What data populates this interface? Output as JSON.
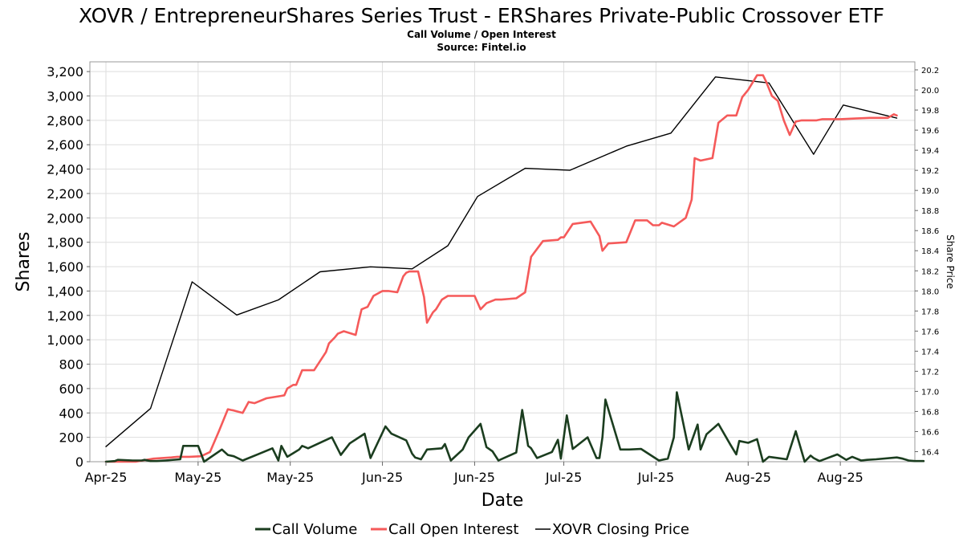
{
  "chart_data": {
    "type": "line",
    "title": "XOVR / EntrepreneurShares Series Trust - ERShares Private-Public Crossover ETF",
    "subtitle": "Call Volume / Open Interest",
    "source": "Source: Fintel.io",
    "xlabel": "Date",
    "ylabel": "Shares",
    "y2label": "Share Price",
    "ylim": [
      0,
      3280
    ],
    "y2lim": [
      16.3,
      20.28
    ],
    "grid": true,
    "legend_position": "bottom",
    "x_ticks": [
      {
        "label": "Apr-25",
        "x": 0
      },
      {
        "label": "May-25",
        "x": 31
      },
      {
        "label": "May-25",
        "x": 62
      },
      {
        "label": "Jun-25",
        "x": 93
      },
      {
        "label": "Jun-25",
        "x": 124
      },
      {
        "label": "Jul-25",
        "x": 154
      },
      {
        "label": "Jul-25",
        "x": 185
      },
      {
        "label": "Aug-25",
        "x": 216
      },
      {
        "label": "Aug-25",
        "x": 247
      }
    ],
    "y_ticks": [
      "0",
      "200",
      "400",
      "600",
      "800",
      "1,000",
      "1,200",
      "1,400",
      "1,600",
      "1,800",
      "2,000",
      "2,200",
      "2,400",
      "2,600",
      "2,800",
      "3,000",
      "3,200"
    ],
    "y2_ticks": [
      "16.4",
      "16.6",
      "16.8",
      "17.0",
      "17.2",
      "17.4",
      "17.6",
      "17.8",
      "18.0",
      "18.2",
      "18.4",
      "18.6",
      "18.8",
      "19.0",
      "19.2",
      "19.4",
      "19.6",
      "19.8",
      "20.0",
      "20.2"
    ],
    "series": [
      {
        "name": "Call Volume",
        "axis": "left",
        "color": "#1b3d1f",
        "x": [
          0,
          3,
          4,
          7,
          9,
          12,
          13,
          15,
          17,
          20,
          25,
          26,
          28,
          31,
          33,
          39,
          41,
          43,
          46,
          51,
          56,
          58,
          59,
          61,
          63,
          65,
          66,
          68,
          76,
          79,
          82,
          87,
          89,
          94,
          96,
          101,
          103,
          104,
          106,
          108,
          113,
          114,
          116,
          120,
          122,
          126,
          128,
          130,
          132,
          138,
          140,
          142,
          143,
          145,
          150,
          152,
          153,
          155,
          157,
          162,
          165,
          166,
          167,
          168,
          173,
          174,
          176,
          180,
          186,
          189,
          191,
          192,
          196,
          199,
          200,
          202,
          206,
          210,
          212,
          213,
          216,
          219,
          221,
          223,
          226,
          229,
          232,
          235,
          237,
          238,
          240,
          246,
          249,
          251,
          254,
          256,
          259,
          266,
          268,
          270,
          272,
          275
        ],
        "y": [
          0,
          5,
          15,
          12,
          10,
          10,
          15,
          5,
          5,
          10,
          20,
          130,
          130,
          130,
          0,
          100,
          55,
          45,
          10,
          60,
          110,
          10,
          130,
          40,
          70,
          100,
          130,
          110,
          200,
          55,
          150,
          230,
          30,
          290,
          230,
          175,
          65,
          35,
          20,
          100,
          110,
          145,
          10,
          100,
          200,
          310,
          120,
          85,
          10,
          75,
          425,
          130,
          110,
          30,
          80,
          180,
          25,
          380,
          105,
          200,
          30,
          30,
          200,
          510,
          100,
          100,
          100,
          105,
          10,
          25,
          200,
          570,
          100,
          305,
          100,
          225,
          310,
          140,
          60,
          170,
          155,
          185,
          0,
          40,
          30,
          20,
          250,
          0,
          50,
          30,
          5,
          60,
          15,
          40,
          10,
          15,
          20,
          35,
          25,
          10,
          5,
          5
        ]
      },
      {
        "name": "Call Open Interest",
        "axis": "left",
        "color": "#f55a5a",
        "x": [
          0,
          10,
          16,
          22,
          24,
          28,
          32,
          35,
          38,
          41,
          42,
          43,
          46,
          48,
          50,
          54,
          59,
          60,
          61,
          63,
          64,
          66,
          70,
          74,
          75,
          77,
          78,
          80,
          84,
          85,
          86,
          88,
          90,
          93,
          95,
          98,
          100,
          101,
          102,
          105,
          107,
          108,
          110,
          111,
          113,
          115,
          117,
          124,
          126,
          128,
          131,
          133,
          138,
          141,
          143,
          147,
          152,
          153,
          154,
          157,
          163,
          166,
          167,
          169,
          175,
          178,
          182,
          184,
          186,
          187,
          191,
          195,
          197,
          198,
          200,
          204,
          206,
          209,
          210,
          212,
          214,
          216,
          219,
          221,
          222,
          224,
          226,
          228,
          230,
          232,
          234,
          239,
          241,
          244,
          245,
          247,
          252,
          257,
          263,
          265,
          266
        ],
        "y": [
          0,
          0,
          25,
          35,
          40,
          40,
          45,
          80,
          250,
          430,
          425,
          420,
          400,
          490,
          480,
          520,
          540,
          545,
          600,
          630,
          630,
          750,
          750,
          900,
          970,
          1020,
          1050,
          1070,
          1040,
          1150,
          1250,
          1270,
          1360,
          1400,
          1400,
          1390,
          1520,
          1550,
          1560,
          1560,
          1350,
          1140,
          1225,
          1250,
          1330,
          1360,
          1360,
          1360,
          1250,
          1300,
          1330,
          1330,
          1340,
          1390,
          1680,
          1810,
          1820,
          1840,
          1840,
          1950,
          1970,
          1850,
          1730,
          1790,
          1800,
          1980,
          1980,
          1940,
          1940,
          1960,
          1930,
          2000,
          2150,
          2490,
          2470,
          2490,
          2780,
          2840,
          2840,
          2840,
          2990,
          3050,
          3170,
          3170,
          3120,
          3000,
          2960,
          2800,
          2680,
          2790,
          2800,
          2800,
          2810,
          2810,
          2810,
          2810,
          2815,
          2820,
          2820,
          2850,
          2840
        ],
        "smooth": true
      },
      {
        "name": "XOVR Closing Price",
        "axis": "right",
        "color": "#000000",
        "x": [
          0,
          15,
          29,
          44,
          58,
          72,
          89,
          103,
          115,
          125,
          141,
          156,
          175,
          190,
          205,
          223,
          238,
          248,
          266
        ],
        "y": [
          16.45,
          16.83,
          18.09,
          17.76,
          17.91,
          18.19,
          18.24,
          18.22,
          18.45,
          18.94,
          19.22,
          19.2,
          19.44,
          19.57,
          20.13,
          20.07,
          19.36,
          19.85,
          19.72
        ],
        "sharp": true
      }
    ]
  },
  "legend": {
    "call_volume": "Call Volume",
    "call_open_interest": "Call Open Interest",
    "closing_price": "XOVR Closing Price"
  }
}
